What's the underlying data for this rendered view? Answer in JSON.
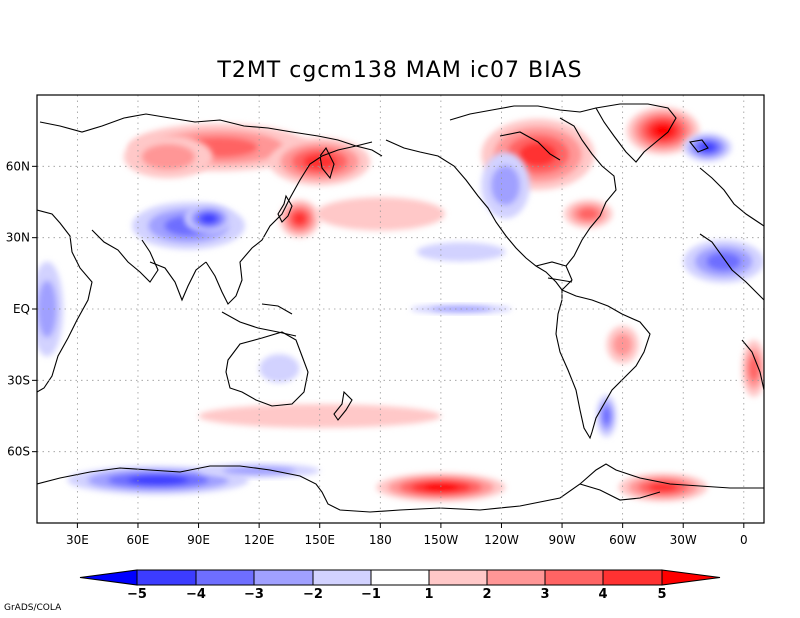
{
  "figure": {
    "title": "T2MT cgcm138 MAM ic07 BIAS",
    "footer": "GrADS/COLA"
  },
  "map": {
    "projection": "latlon",
    "lon_range": [
      10,
      370
    ],
    "lat_range": [
      -90,
      90
    ],
    "grid_lines": "dotted",
    "x_ticks": [
      {
        "lon": 30,
        "label": "30E"
      },
      {
        "lon": 60,
        "label": "60E"
      },
      {
        "lon": 90,
        "label": "90E"
      },
      {
        "lon": 120,
        "label": "120E"
      },
      {
        "lon": 150,
        "label": "150E"
      },
      {
        "lon": 180,
        "label": "180"
      },
      {
        "lon": 210,
        "label": "150W"
      },
      {
        "lon": 240,
        "label": "120W"
      },
      {
        "lon": 270,
        "label": "90W"
      },
      {
        "lon": 300,
        "label": "60W"
      },
      {
        "lon": 330,
        "label": "30W"
      },
      {
        "lon": 360,
        "label": "0"
      }
    ],
    "y_ticks": [
      {
        "lat": 60,
        "label": "60N"
      },
      {
        "lat": 30,
        "label": "30N"
      },
      {
        "lat": 0,
        "label": "EQ"
      },
      {
        "lat": -30,
        "label": "30S"
      },
      {
        "lat": -60,
        "label": "60S"
      }
    ],
    "anomaly_regions": [
      {
        "name": "siberia-warm",
        "lon": 100,
        "lat": 68,
        "rlon": 45,
        "rlat": 10,
        "level": 3
      },
      {
        "name": "east-siberia-warm",
        "lon": 150,
        "lat": 62,
        "rlon": 25,
        "rlat": 10,
        "level": 4
      },
      {
        "name": "west-siberia-warm",
        "lon": 75,
        "lat": 64,
        "rlon": 22,
        "rlat": 9,
        "level": 2
      },
      {
        "name": "canada-warm",
        "lon": 258,
        "lat": 65,
        "rlon": 28,
        "rlat": 15,
        "level": 4
      },
      {
        "name": "greenland-warm",
        "lon": 320,
        "lat": 75,
        "rlon": 18,
        "rlat": 10,
        "level": 5
      },
      {
        "name": "iceland-cold",
        "lon": 342,
        "lat": 68,
        "rlon": 12,
        "rlat": 6,
        "level": -4
      },
      {
        "name": "tibet-cold",
        "lon": 85,
        "lat": 35,
        "rlon": 28,
        "rlat": 10,
        "level": -3
      },
      {
        "name": "tibet-cold-core",
        "lon": 95,
        "lat": 38,
        "rlon": 12,
        "rlat": 6,
        "level": -4
      },
      {
        "name": "rockies-cold",
        "lon": 242,
        "lat": 52,
        "rlon": 12,
        "rlat": 14,
        "level": -2
      },
      {
        "name": "japan-warm",
        "lon": 140,
        "lat": 38,
        "rlon": 10,
        "rlat": 8,
        "level": 4
      },
      {
        "name": "n-pacific-warm",
        "lon": 180,
        "lat": 40,
        "rlon": 32,
        "rlat": 7,
        "level": 1
      },
      {
        "name": "us-east-warm",
        "lon": 283,
        "lat": 40,
        "rlon": 12,
        "rlat": 6,
        "level": 3
      },
      {
        "name": "sahara-cold",
        "lon": 350,
        "lat": 20,
        "rlon": 20,
        "rlat": 9,
        "level": -3
      },
      {
        "name": "africa-cold",
        "lon": 15,
        "lat": 0,
        "rlon": 8,
        "rlat": 20,
        "level": -2
      },
      {
        "name": "pacific-cold-tongue",
        "lon": 220,
        "lat": 0,
        "rlon": 25,
        "rlat": 2,
        "level": -2
      },
      {
        "name": "ne-pacific-cold",
        "lon": 220,
        "lat": 24,
        "rlon": 22,
        "rlat": 4,
        "level": -1
      },
      {
        "name": "australia-cold",
        "lon": 130,
        "lat": -25,
        "rlon": 10,
        "rlat": 6,
        "level": -1
      },
      {
        "name": "south-america-warm",
        "lon": 300,
        "lat": -15,
        "rlon": 8,
        "rlat": 8,
        "level": 2
      },
      {
        "name": "patagonia-cold",
        "lon": 292,
        "lat": -45,
        "rlon": 5,
        "rlat": 9,
        "level": -3
      },
      {
        "name": "s-atlantic-warm",
        "lon": 365,
        "lat": -25,
        "rlon": 6,
        "rlat": 12,
        "level": 3
      },
      {
        "name": "southern-ocean-warm",
        "lon": 150,
        "lat": -45,
        "rlon": 60,
        "rlat": 5,
        "level": 1
      },
      {
        "name": "ross-sea-warm",
        "lon": 210,
        "lat": -75,
        "rlon": 32,
        "rlat": 6,
        "level": 5
      },
      {
        "name": "weddell-warm",
        "lon": 320,
        "lat": -75,
        "rlon": 22,
        "rlat": 6,
        "level": 4
      },
      {
        "name": "east-antarctic-cold",
        "lon": 70,
        "lat": -72,
        "rlon": 45,
        "rlat": 6,
        "level": -4
      },
      {
        "name": "antarctic-coast-cold",
        "lon": 120,
        "lat": -68,
        "rlon": 30,
        "rlat": 3,
        "level": -2
      }
    ]
  },
  "colorbar": {
    "labels": [
      "-5",
      "-4",
      "-3",
      "-2",
      "-1",
      "1",
      "2",
      "3",
      "4",
      "5"
    ],
    "colors": [
      "#0000ff",
      "#3c3cff",
      "#6e6eff",
      "#a0a0ff",
      "#d2d2ff",
      "#ffffff",
      "#ffc8c8",
      "#ff9696",
      "#ff6464",
      "#ff3232",
      "#ff0000"
    ]
  }
}
